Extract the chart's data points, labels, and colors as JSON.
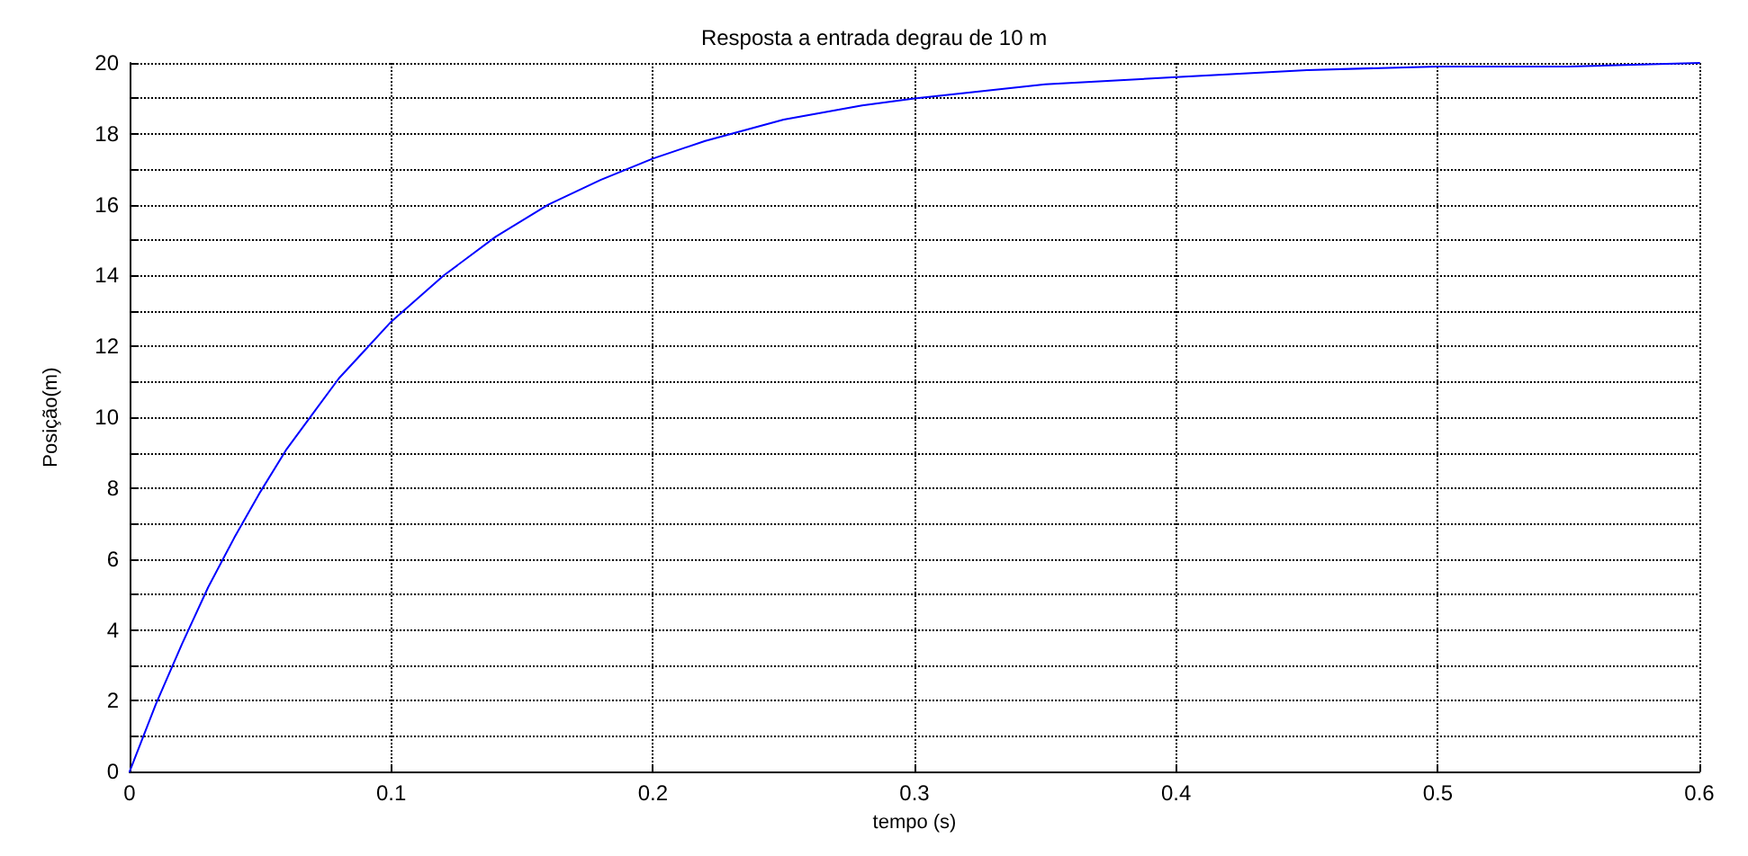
{
  "chart_data": {
    "type": "line",
    "title": "Resposta a entrada degrau de 10 m",
    "xlabel": "tempo (s)",
    "ylabel": "Posição(m)",
    "x": [
      0,
      0.01,
      0.02,
      0.03,
      0.04,
      0.05,
      0.06,
      0.07,
      0.08,
      0.09,
      0.1,
      0.12,
      0.14,
      0.16,
      0.18,
      0.2,
      0.22,
      0.25,
      0.28,
      0.3,
      0.35,
      0.4,
      0.45,
      0.5,
      0.55,
      0.6
    ],
    "series": [
      {
        "color": "#0000ff",
        "values": [
          0,
          1.9,
          3.6,
          5.2,
          6.6,
          7.9,
          9.1,
          10.1,
          11.1,
          11.9,
          12.7,
          14.0,
          15.1,
          16.0,
          16.7,
          17.3,
          17.8,
          18.4,
          18.8,
          19.0,
          19.4,
          19.6,
          19.8,
          19.9,
          19.9,
          20.0
        ]
      }
    ],
    "xlim": [
      0,
      0.6
    ],
    "xticks": [
      0,
      0.1,
      0.2,
      0.3,
      0.4,
      0.5,
      0.6
    ],
    "ylim": [
      0,
      20
    ],
    "yticks": [
      0,
      {
        "value": 1,
        "label": null
      },
      2,
      {
        "value": 3,
        "label": null
      },
      4,
      {
        "value": 5,
        "label": null
      },
      6,
      {
        "value": 7,
        "label": null
      },
      8,
      {
        "value": 9,
        "label": null
      },
      10,
      {
        "value": 11,
        "label": null
      },
      12,
      {
        "value": 13,
        "label": null
      },
      14,
      {
        "value": 15,
        "label": null
      },
      16,
      {
        "value": 17,
        "label": null
      },
      18,
      {
        "value": 19,
        "label": null
      },
      20
    ],
    "grid": true,
    "marker": "none",
    "line_style": "solid"
  }
}
